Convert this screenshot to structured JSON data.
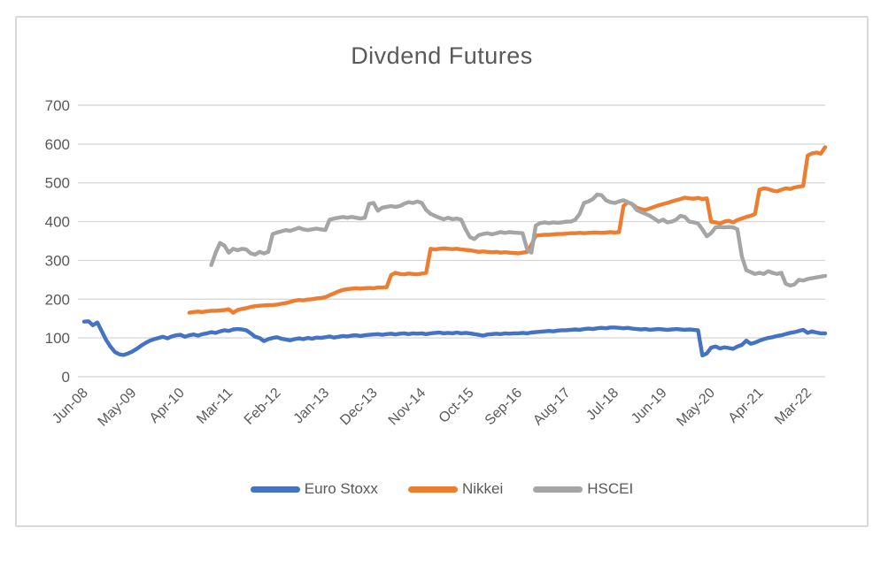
{
  "page": {
    "background_color": "#ffffff",
    "frame_border_color": "#d9d9d9"
  },
  "chart_data": {
    "type": "line",
    "title": "Divdend Futures",
    "title_color": "#595959",
    "axis_text_color": "#595959",
    "gridline_color": "#d9d9d9",
    "grid": "horizontal-only",
    "legend_position": "bottom-center",
    "y_axis": {
      "min": 0,
      "max": 700,
      "step": 100,
      "tick_labels": [
        "0",
        "100",
        "200",
        "300",
        "400",
        "500",
        "600",
        "700"
      ]
    },
    "x_axis": {
      "unit": "months-since-Jun-2008",
      "total_months": 169,
      "tick_months": [
        0,
        11,
        22,
        33,
        44,
        55,
        66,
        77,
        88,
        99,
        110,
        121,
        132,
        143,
        154,
        165
      ],
      "tick_labels": [
        "Jun-08",
        "May-09",
        "Apr-10",
        "Mar-11",
        "Feb-12",
        "Jan-13",
        "Dec-13",
        "Nov-14",
        "Oct-15",
        "Sep-16",
        "Aug-17",
        "Jul-18",
        "Jun-19",
        "May-20",
        "Apr-21",
        "Mar-22"
      ]
    },
    "series": [
      {
        "name": "Euro Stoxx",
        "color": "#4472C4",
        "start_month": 0,
        "values": [
          142,
          143,
          133,
          140,
          118,
          95,
          78,
          64,
          58,
          56,
          60,
          65,
          72,
          80,
          87,
          93,
          97,
          100,
          103,
          99,
          104,
          107,
          108,
          103,
          107,
          109,
          106,
          110,
          112,
          115,
          113,
          117,
          120,
          118,
          122,
          123,
          122,
          120,
          112,
          103,
          100,
          92,
          97,
          100,
          102,
          98,
          96,
          94,
          97,
          99,
          97,
          100,
          98,
          101,
          100,
          102,
          104,
          101,
          103,
          105,
          104,
          106,
          107,
          105,
          107,
          108,
          109,
          110,
          108,
          110,
          111,
          109,
          111,
          112,
          110,
          112,
          111,
          112,
          110,
          112,
          113,
          114,
          112,
          113,
          112,
          114,
          112,
          113,
          112,
          110,
          108,
          106,
          109,
          110,
          111,
          110,
          112,
          111,
          112,
          112,
          113,
          112,
          114,
          115,
          116,
          117,
          118,
          117,
          119,
          120,
          120,
          121,
          122,
          121,
          123,
          124,
          123,
          125,
          126,
          125,
          127,
          127,
          126,
          125,
          126,
          124,
          123,
          122,
          123,
          121,
          122,
          123,
          122,
          121,
          122,
          123,
          122,
          121,
          122,
          121,
          120,
          55,
          60,
          75,
          78,
          73,
          76,
          74,
          72,
          78,
          82,
          93,
          85,
          88,
          93,
          97,
          100,
          102,
          105,
          107,
          110,
          113,
          115,
          118,
          121,
          113,
          117,
          114,
          112,
          112
        ]
      },
      {
        "name": "Nikkei",
        "color": "#ED7D31",
        "start_month": 24,
        "values": [
          165,
          167,
          168,
          167,
          169,
          170,
          170,
          171,
          172,
          174,
          165,
          172,
          175,
          177,
          180,
          182,
          183,
          184,
          185,
          185,
          186,
          188,
          190,
          193,
          196,
          198,
          197,
          199,
          200,
          202,
          203,
          205,
          210,
          215,
          220,
          224,
          226,
          227,
          228,
          227,
          228,
          229,
          228,
          230,
          230,
          231,
          262,
          268,
          265,
          264,
          266,
          265,
          264,
          266,
          268,
          330,
          328,
          330,
          331,
          330,
          329,
          330,
          328,
          327,
          326,
          324,
          322,
          323,
          322,
          321,
          322,
          320,
          321,
          320,
          319,
          318,
          320,
          322,
          340,
          364,
          365,
          366,
          366,
          367,
          368,
          368,
          369,
          370,
          370,
          371,
          370,
          371,
          372,
          372,
          371,
          372,
          373,
          372,
          373,
          440,
          450,
          445,
          436,
          432,
          430,
          434,
          438,
          442,
          445,
          448,
          452,
          455,
          458,
          462,
          460,
          459,
          461,
          458,
          460,
          400,
          398,
          395,
          400,
          402,
          398,
          404,
          408,
          412,
          415,
          420,
          482,
          486,
          484,
          480,
          478,
          482,
          486,
          484,
          488,
          490,
          492,
          570,
          576,
          578,
          575,
          592
        ]
      },
      {
        "name": "HSCEI",
        "color": "#A5A5A5",
        "start_month": 29,
        "values": [
          288,
          320,
          345,
          338,
          320,
          330,
          326,
          330,
          328,
          318,
          315,
          322,
          318,
          322,
          368,
          372,
          375,
          378,
          376,
          380,
          384,
          380,
          378,
          380,
          382,
          380,
          378,
          405,
          408,
          410,
          412,
          410,
          412,
          410,
          408,
          410,
          446,
          448,
          428,
          436,
          438,
          440,
          438,
          440,
          446,
          450,
          448,
          452,
          448,
          430,
          420,
          415,
          410,
          406,
          410,
          406,
          408,
          405,
          380,
          360,
          355,
          365,
          368,
          370,
          367,
          370,
          373,
          371,
          373,
          372,
          371,
          370,
          330,
          320,
          390,
          396,
          398,
          396,
          398,
          397,
          398,
          400,
          400,
          405,
          420,
          448,
          452,
          458,
          470,
          468,
          455,
          450,
          448,
          452,
          455,
          450,
          445,
          430,
          425,
          420,
          415,
          408,
          400,
          405,
          398,
          400,
          405,
          415,
          412,
          400,
          398,
          395,
          380,
          362,
          370,
          385,
          386,
          385,
          386,
          385,
          380,
          310,
          275,
          270,
          265,
          268,
          265,
          272,
          268,
          265,
          268,
          240,
          235,
          238,
          250,
          248,
          252,
          254,
          256,
          258,
          260
        ]
      }
    ]
  }
}
